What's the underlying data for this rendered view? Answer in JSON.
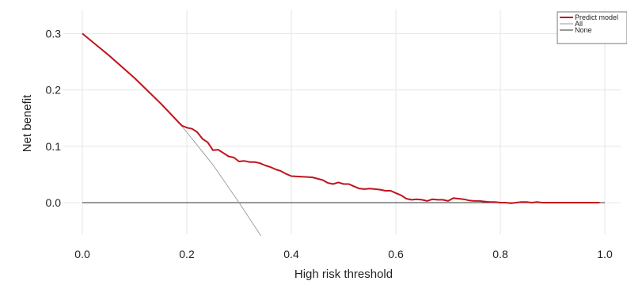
{
  "chart_data": {
    "type": "line",
    "xlabel": "High risk threshold",
    "ylabel": "Net benefit",
    "xlim": [
      0,
      1.0
    ],
    "ylim": [
      -0.065,
      0.34
    ],
    "x_ticks": [
      "0.0",
      "0.2",
      "0.4",
      "0.6",
      "0.8",
      "1.0"
    ],
    "y_ticks": [
      "0.0",
      "0.1",
      "0.2",
      "0.3"
    ],
    "grid": true,
    "legend_position": "top-right",
    "series": [
      {
        "name": "Predict model",
        "color": "#c0141c",
        "x": [
          0.0,
          0.05,
          0.1,
          0.15,
          0.19,
          0.2,
          0.21,
          0.22,
          0.23,
          0.24,
          0.25,
          0.26,
          0.27,
          0.28,
          0.29,
          0.3,
          0.31,
          0.32,
          0.33,
          0.34,
          0.35,
          0.36,
          0.37,
          0.38,
          0.39,
          0.4,
          0.42,
          0.44,
          0.46,
          0.47,
          0.48,
          0.49,
          0.5,
          0.51,
          0.52,
          0.53,
          0.54,
          0.55,
          0.56,
          0.57,
          0.58,
          0.59,
          0.6,
          0.61,
          0.62,
          0.63,
          0.64,
          0.65,
          0.66,
          0.67,
          0.68,
          0.69,
          0.7,
          0.71,
          0.72,
          0.73,
          0.74,
          0.75,
          0.76,
          0.77,
          0.78,
          0.79,
          0.8,
          0.81,
          0.82,
          0.83,
          0.84,
          0.85,
          0.86,
          0.87,
          0.88,
          0.9,
          0.95,
          0.99
        ],
        "y": [
          0.3,
          0.262,
          0.221,
          0.176,
          0.137,
          0.133,
          0.131,
          0.125,
          0.113,
          0.107,
          0.093,
          0.094,
          0.088,
          0.082,
          0.08,
          0.073,
          0.074,
          0.072,
          0.072,
          0.07,
          0.066,
          0.063,
          0.059,
          0.056,
          0.051,
          0.047,
          0.046,
          0.045,
          0.04,
          0.035,
          0.033,
          0.036,
          0.033,
          0.033,
          0.029,
          0.025,
          0.024,
          0.025,
          0.024,
          0.023,
          0.021,
          0.021,
          0.017,
          0.013,
          0.007,
          0.005,
          0.006,
          0.005,
          0.003,
          0.006,
          0.005,
          0.005,
          0.003,
          0.008,
          0.007,
          0.006,
          0.004,
          0.003,
          0.003,
          0.002,
          0.001,
          0.001,
          0.0,
          0.0,
          -0.001,
          0.0,
          0.001,
          0.001,
          0.0,
          0.001,
          0.0,
          0.0,
          0.0,
          0.0
        ]
      },
      {
        "name": "All",
        "color": "#999999",
        "x": [
          0.0,
          0.05,
          0.1,
          0.15,
          0.19,
          0.2,
          0.25,
          0.3,
          0.346
        ],
        "y": [
          0.3,
          0.263,
          0.222,
          0.176,
          0.136,
          0.125,
          0.067,
          0.0,
          -0.065
        ]
      },
      {
        "name": "None",
        "color": "#333333",
        "x": [
          0.0,
          1.0
        ],
        "y": [
          0.0,
          0.0
        ]
      }
    ]
  }
}
